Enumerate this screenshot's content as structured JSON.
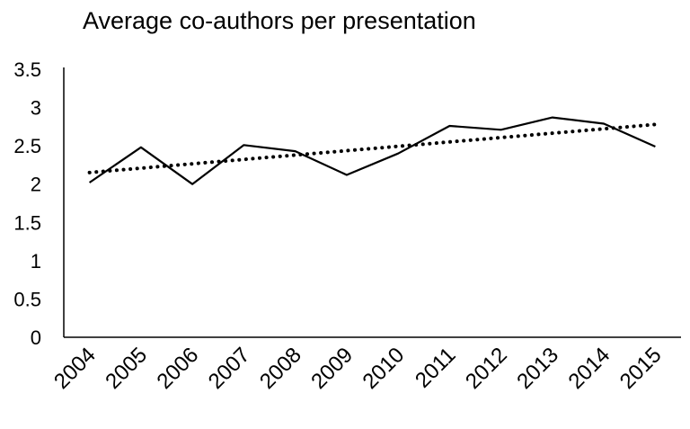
{
  "chart_data": {
    "type": "line",
    "title": "Average co-authors per presentation",
    "xlabel": "",
    "ylabel": "",
    "categories": [
      "2004",
      "2005",
      "2006",
      "2007",
      "2008",
      "2009",
      "2010",
      "2011",
      "2012",
      "2013",
      "2014",
      "2015"
    ],
    "series": [
      {
        "values": [
          2.02,
          2.48,
          2.0,
          2.51,
          2.43,
          2.12,
          2.4,
          2.76,
          2.71,
          2.87,
          2.79,
          2.49
        ],
        "style": "solid",
        "color": "#000000"
      }
    ],
    "trendline": {
      "type": "linear",
      "style": "dotted",
      "color": "#000000"
    },
    "ylim": [
      0,
      3.5
    ],
    "yticks": [
      "0",
      "0.5",
      "1",
      "1.5",
      "2",
      "2.5",
      "3",
      "3.5"
    ],
    "grid": false,
    "legend": "none"
  }
}
